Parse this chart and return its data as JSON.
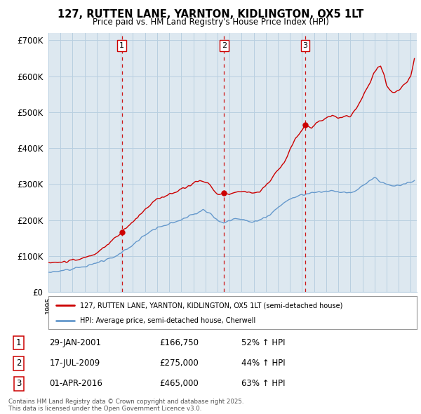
{
  "title": "127, RUTTEN LANE, YARNTON, KIDLINGTON, OX5 1LT",
  "subtitle": "Price paid vs. HM Land Registry's House Price Index (HPI)",
  "ylim": [
    0,
    720000
  ],
  "yticks": [
    0,
    100000,
    200000,
    300000,
    400000,
    500000,
    600000,
    700000
  ],
  "ytick_labels": [
    "£0",
    "£100K",
    "£200K",
    "£300K",
    "£400K",
    "£500K",
    "£600K",
    "£700K"
  ],
  "xlim_start": 1995.0,
  "xlim_end": 2025.5,
  "bg_color": "#ffffff",
  "chart_bg_color": "#dde8f0",
  "grid_color": "#b8cfe0",
  "red_line_color": "#cc0000",
  "blue_line_color": "#6699cc",
  "dashed_color": "#cc0000",
  "sale1_x": 2001.08,
  "sale1_y": 166750,
  "sale1_label": "1",
  "sale1_date": "29-JAN-2001",
  "sale1_price": "£166,750",
  "sale1_hpi": "52% ↑ HPI",
  "sale2_x": 2009.54,
  "sale2_y": 275000,
  "sale2_label": "2",
  "sale2_date": "17-JUL-2009",
  "sale2_price": "£275,000",
  "sale2_hpi": "44% ↑ HPI",
  "sale3_x": 2016.25,
  "sale3_y": 465000,
  "sale3_label": "3",
  "sale3_date": "01-APR-2016",
  "sale3_price": "£465,000",
  "sale3_hpi": "63% ↑ HPI",
  "legend_line1": "127, RUTTEN LANE, YARNTON, KIDLINGTON, OX5 1LT (semi-detached house)",
  "legend_line2": "HPI: Average price, semi-detached house, Cherwell",
  "footnote": "Contains HM Land Registry data © Crown copyright and database right 2025.\nThis data is licensed under the Open Government Licence v3.0."
}
